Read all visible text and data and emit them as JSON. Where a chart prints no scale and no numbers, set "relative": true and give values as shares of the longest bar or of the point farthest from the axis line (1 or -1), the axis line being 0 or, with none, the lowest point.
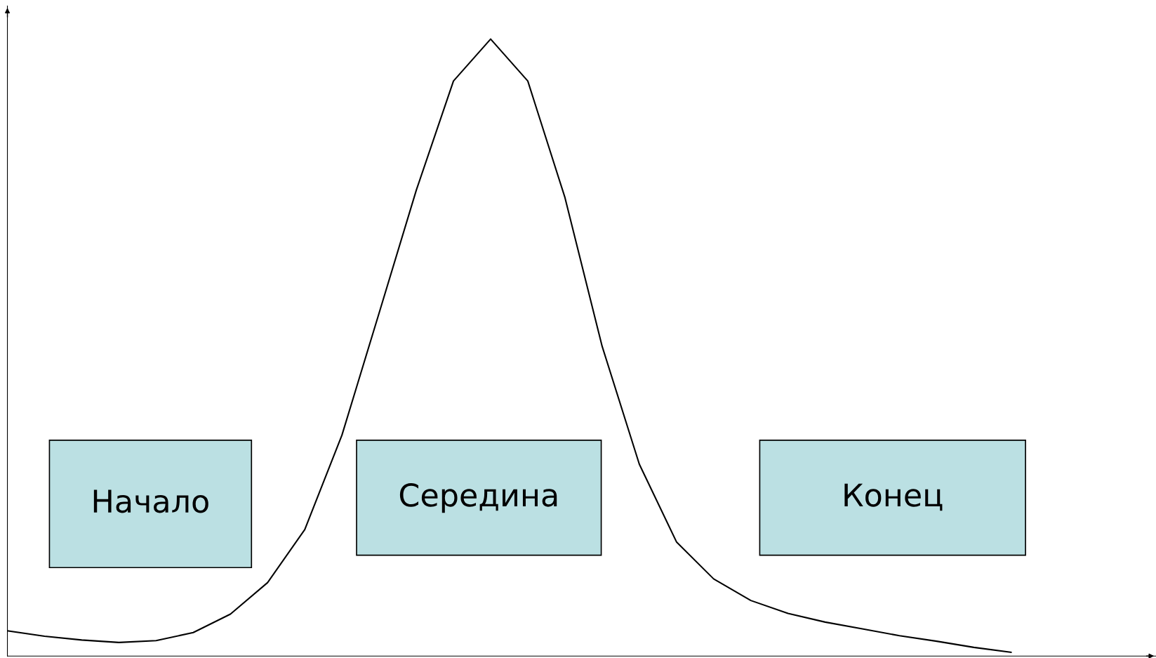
{
  "chart_data": {
    "type": "line",
    "relative": true,
    "color": "#000000",
    "marker": "none",
    "line_style": "solid",
    "legend": false,
    "categories": [
      null,
      null,
      null,
      null,
      null,
      null,
      null,
      null,
      null,
      null,
      null,
      null,
      null,
      null,
      null,
      null,
      null,
      null,
      null,
      null,
      null,
      null,
      null,
      null,
      null,
      null,
      null,
      null
    ],
    "values": [
      0.041,
      0.032,
      0.026,
      0.022,
      0.025,
      0.038,
      0.068,
      0.119,
      0.205,
      0.358,
      0.556,
      0.755,
      0.932,
      1.0,
      0.932,
      0.743,
      0.502,
      0.311,
      0.185,
      0.125,
      0.09,
      0.069,
      0.055,
      0.044,
      0.033,
      0.024,
      0.014,
      0.006
    ],
    "annotations": [
      "Начало",
      "Середина",
      "Конец"
    ]
  }
}
